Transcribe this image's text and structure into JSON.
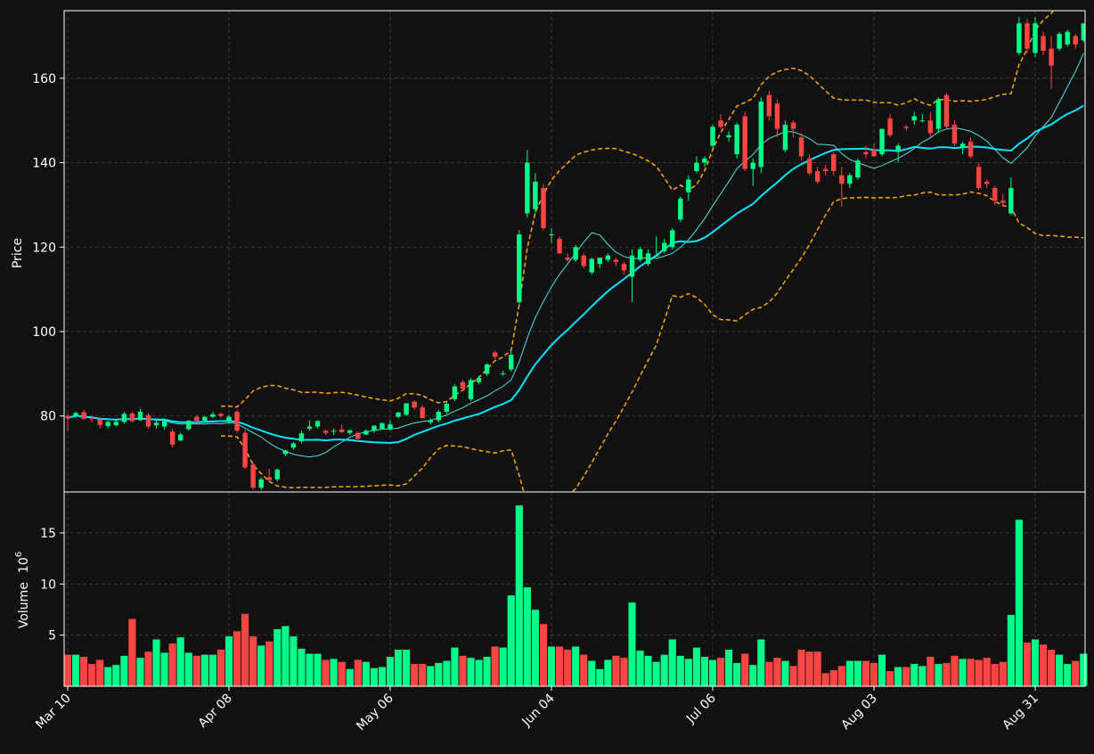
{
  "colors": {
    "background": "#111111",
    "up": "#00ff88",
    "down": "#ff4444",
    "ma_fast": "#4ae0e0",
    "ma_slow": "#00e5ff",
    "bands": "#ffa500",
    "grid": "#444444",
    "axis": "#ffffff"
  },
  "chart_data": {
    "type": "candlestick",
    "price_panel": {
      "ylabel": "Price",
      "ylim": [
        62,
        176
      ],
      "yticks": [
        "80",
        "100",
        "120",
        "140",
        "160"
      ],
      "ytick_values": [
        80,
        100,
        120,
        140,
        160
      ],
      "grid": true
    },
    "volume_panel": {
      "ylabel": "Volume",
      "multiplier": "10",
      "exponent": "6",
      "ylim": [
        0,
        19
      ],
      "yticks": [
        "5",
        "10",
        "15"
      ],
      "ytick_values": [
        5,
        10,
        15
      ],
      "grid": true
    },
    "x_ticks": [
      {
        "label": "Mar 10",
        "index": 0
      },
      {
        "label": "Apr 08",
        "index": 20
      },
      {
        "label": "May 06",
        "index": 40
      },
      {
        "label": "Jun 04",
        "index": 60
      },
      {
        "label": "Jul 06",
        "index": 80
      },
      {
        "label": "Aug 03",
        "index": 100
      },
      {
        "label": "Aug 31",
        "index": 120
      }
    ],
    "n_bars": 127,
    "candles_ohlcv": [
      [
        80.0,
        80.5,
        76.5,
        79.5,
        3.1
      ],
      [
        80.2,
        81.0,
        79.5,
        80.7,
        3.1
      ],
      [
        80.9,
        81.5,
        79.0,
        79.3,
        2.9
      ],
      [
        79.5,
        80.0,
        78.5,
        79.3,
        2.2
      ],
      [
        79.2,
        79.8,
        77.0,
        77.9,
        2.6
      ],
      [
        77.6,
        78.8,
        77.0,
        78.6,
        1.9
      ],
      [
        77.8,
        79.2,
        77.5,
        78.6,
        2.1
      ],
      [
        78.6,
        81.0,
        78.2,
        80.5,
        3.0
      ],
      [
        80.6,
        81.0,
        78.5,
        78.8,
        6.6
      ],
      [
        79.0,
        81.6,
        78.8,
        81.0,
        2.8
      ],
      [
        80.2,
        80.7,
        77.0,
        77.5,
        3.4
      ],
      [
        77.8,
        79.0,
        77.0,
        78.4,
        4.6
      ],
      [
        77.5,
        79.2,
        76.8,
        78.8,
        3.3
      ],
      [
        76.3,
        77.0,
        72.5,
        73.2,
        4.2
      ],
      [
        74.2,
        76.0,
        74.0,
        75.6,
        4.8
      ],
      [
        76.9,
        79.0,
        76.5,
        78.9,
        3.3
      ],
      [
        79.8,
        80.2,
        78.5,
        78.9,
        3.0
      ],
      [
        78.9,
        80.0,
        78.5,
        79.8,
        3.1
      ],
      [
        79.8,
        81.0,
        79.5,
        80.4,
        3.1
      ],
      [
        80.5,
        80.8,
        79.5,
        80.0,
        3.6
      ],
      [
        78.8,
        80.2,
        78.5,
        79.8,
        4.9
      ],
      [
        81.0,
        81.5,
        76.0,
        76.5,
        5.4
      ],
      [
        76.0,
        76.8,
        67.5,
        67.8,
        7.1
      ],
      [
        68.5,
        69.0,
        62.5,
        63.0,
        4.9
      ],
      [
        63.0,
        65.5,
        62.5,
        65.0,
        4.0
      ],
      [
        65.5,
        67.5,
        64.5,
        64.8,
        4.4
      ],
      [
        65.0,
        67.5,
        64.5,
        67.3,
        5.6
      ],
      [
        71.0,
        72.0,
        70.5,
        71.8,
        5.9
      ],
      [
        72.5,
        73.8,
        72.0,
        73.5,
        4.9
      ],
      [
        74.0,
        76.5,
        73.5,
        75.9,
        3.7
      ],
      [
        77.0,
        79.0,
        76.5,
        77.5,
        3.2
      ],
      [
        77.5,
        79.0,
        77.0,
        78.8,
        3.2
      ],
      [
        76.5,
        76.8,
        75.5,
        76.0,
        2.6
      ],
      [
        76.4,
        77.0,
        75.5,
        76.5,
        2.7
      ],
      [
        76.8,
        78.0,
        76.0,
        76.2,
        2.4
      ],
      [
        76.0,
        76.8,
        75.5,
        76.6,
        1.7
      ],
      [
        76.0,
        76.3,
        74.0,
        74.6,
        2.6
      ],
      [
        75.6,
        76.8,
        75.5,
        76.5,
        2.4
      ],
      [
        76.5,
        77.8,
        76.0,
        77.7,
        1.8
      ],
      [
        77.0,
        78.5,
        76.8,
        78.3,
        1.9
      ],
      [
        76.8,
        79.0,
        76.5,
        78.0,
        2.9
      ],
      [
        79.8,
        81.0,
        79.5,
        80.8,
        3.6
      ],
      [
        80.3,
        83.0,
        80.0,
        83.0,
        3.6
      ],
      [
        83.4,
        83.7,
        81.5,
        82.0,
        2.2
      ],
      [
        82.0,
        82.5,
        79.5,
        79.5,
        2.2
      ],
      [
        78.5,
        79.5,
        78.0,
        79.0,
        2.0
      ],
      [
        79.0,
        81.5,
        78.5,
        81.0,
        2.3
      ],
      [
        81.0,
        83.5,
        80.5,
        82.9,
        2.5
      ],
      [
        84.0,
        87.5,
        83.5,
        87.0,
        3.8
      ],
      [
        88.0,
        88.5,
        86.0,
        86.5,
        3.0
      ],
      [
        84.0,
        89.0,
        83.5,
        88.5,
        2.8
      ],
      [
        88.0,
        89.5,
        87.5,
        89.0,
        2.6
      ],
      [
        90.0,
        92.5,
        89.5,
        92.2,
        2.9
      ],
      [
        95.0,
        95.5,
        93.5,
        94.0,
        3.9
      ],
      [
        90.0,
        90.7,
        89.5,
        90.1,
        3.8
      ],
      [
        91.0,
        95.5,
        90.5,
        94.5,
        8.9
      ],
      [
        107.0,
        124.0,
        106.0,
        123.0,
        17.7
      ],
      [
        128.0,
        143.0,
        127.0,
        140.0,
        9.7
      ],
      [
        129.0,
        137.5,
        128.0,
        135.5,
        7.5
      ],
      [
        134.0,
        135.0,
        124.0,
        124.5,
        6.1
      ],
      [
        123.0,
        124.5,
        121.0,
        123.0,
        3.9
      ],
      [
        122.0,
        122.5,
        118.5,
        118.5,
        3.9
      ],
      [
        117.5,
        118.5,
        116.5,
        117.0,
        3.6
      ],
      [
        117.0,
        120.5,
        116.5,
        120.0,
        3.9
      ],
      [
        118.0,
        118.5,
        115.0,
        115.5,
        3.1
      ],
      [
        114.0,
        117.5,
        113.5,
        117.2,
        2.5
      ],
      [
        116.0,
        117.5,
        115.0,
        117.5,
        1.7
      ],
      [
        117.0,
        118.5,
        116.5,
        118.0,
        2.6
      ],
      [
        117.0,
        117.5,
        115.5,
        116.5,
        3.0
      ],
      [
        116.0,
        116.5,
        113.5,
        114.5,
        2.8
      ],
      [
        113.0,
        119.5,
        107.0,
        118.0,
        8.2
      ],
      [
        117.0,
        120.0,
        116.5,
        119.5,
        3.5
      ],
      [
        116.0,
        119.5,
        115.5,
        118.5,
        3.0
      ],
      [
        118.0,
        122.5,
        118.0,
        118.0,
        2.4
      ],
      [
        119.0,
        122.0,
        118.5,
        121.0,
        3.1
      ],
      [
        120.0,
        124.5,
        119.5,
        124.0,
        4.6
      ],
      [
        126.5,
        132.0,
        126.0,
        131.5,
        3.0
      ],
      [
        133.0,
        137.0,
        131.0,
        136.0,
        2.7
      ],
      [
        138.0,
        141.5,
        137.5,
        140.0,
        3.8
      ],
      [
        140.0,
        141.5,
        139.0,
        141.0,
        2.9
      ],
      [
        144.0,
        149.0,
        143.5,
        148.5,
        2.6
      ],
      [
        150.0,
        151.5,
        148.0,
        148.5,
        2.8
      ],
      [
        146.0,
        147.5,
        145.0,
        146.5,
        3.6
      ],
      [
        142.0,
        149.5,
        141.0,
        149.0,
        2.3
      ],
      [
        151.0,
        152.0,
        138.0,
        138.5,
        3.2
      ],
      [
        138.5,
        141.0,
        134.5,
        140.0,
        2.1
      ],
      [
        139.0,
        155.5,
        137.5,
        154.5,
        4.6
      ],
      [
        156.0,
        157.0,
        150.0,
        151.0,
        2.4
      ],
      [
        154.0,
        155.0,
        146.0,
        148.0,
        2.8
      ],
      [
        143.0,
        150.0,
        142.5,
        149.0,
        2.5
      ],
      [
        149.5,
        150.0,
        146.0,
        148.0,
        2.0
      ],
      [
        146.0,
        147.0,
        140.5,
        141.5,
        3.6
      ],
      [
        141.0,
        142.0,
        137.0,
        137.5,
        3.4
      ],
      [
        138.0,
        139.0,
        135.0,
        135.5,
        3.4
      ],
      [
        138.5,
        139.5,
        137.0,
        138.0,
        1.3
      ],
      [
        142.0,
        142.5,
        137.0,
        138.0,
        1.6
      ],
      [
        137.0,
        139.0,
        129.5,
        135.0,
        2.0
      ],
      [
        135.0,
        137.5,
        134.0,
        137.0,
        2.5
      ],
      [
        136.5,
        141.0,
        136.0,
        140.5,
        2.5
      ],
      [
        142.5,
        144.0,
        141.0,
        142.0,
        2.5
      ],
      [
        143.0,
        144.5,
        141.5,
        141.5,
        2.3
      ],
      [
        142.0,
        148.0,
        141.5,
        148.0,
        3.1
      ],
      [
        150.5,
        151.5,
        146.0,
        146.5,
        1.5
      ],
      [
        143.0,
        144.5,
        140.0,
        144.0,
        1.9
      ],
      [
        148.5,
        149.0,
        147.5,
        148.2,
        1.9
      ],
      [
        150.0,
        152.0,
        149.0,
        151.0,
        2.2
      ],
      [
        150.0,
        151.5,
        149.5,
        150.0,
        2.0
      ],
      [
        150.0,
        152.0,
        146.0,
        147.0,
        2.9
      ],
      [
        148.0,
        155.5,
        147.0,
        155.0,
        2.2
      ],
      [
        156.0,
        156.5,
        148.0,
        148.5,
        2.3
      ],
      [
        149.0,
        150.0,
        144.0,
        144.5,
        3.0
      ],
      [
        143.5,
        145.0,
        142.0,
        144.5,
        2.7
      ],
      [
        145.0,
        146.0,
        141.0,
        141.5,
        2.7
      ],
      [
        139.0,
        140.0,
        133.5,
        134.0,
        2.6
      ],
      [
        135.5,
        136.0,
        134.0,
        135.0,
        2.8
      ],
      [
        134.0,
        134.5,
        130.0,
        131.0,
        2.2
      ],
      [
        131.0,
        132.5,
        129.5,
        130.5,
        2.4
      ],
      [
        128.0,
        136.5,
        127.5,
        134.0,
        7.0
      ],
      [
        166.0,
        174.5,
        165.5,
        173.0,
        16.3
      ],
      [
        173.0,
        174.0,
        166.0,
        167.0,
        4.3
      ],
      [
        166.0,
        174.5,
        165.0,
        173.0,
        4.6
      ],
      [
        170.0,
        171.0,
        165.5,
        166.5,
        4.1
      ],
      [
        167.0,
        170.0,
        157.5,
        163.0,
        3.6
      ],
      [
        167.0,
        171.0,
        166.5,
        170.5,
        3.1
      ],
      [
        168.0,
        171.5,
        167.5,
        171.0,
        2.2
      ],
      [
        170.0,
        170.5,
        167.0,
        168.0,
        2.5
      ],
      [
        169.0,
        173.0,
        168.5,
        173.0,
        3.2
      ]
    ]
  }
}
